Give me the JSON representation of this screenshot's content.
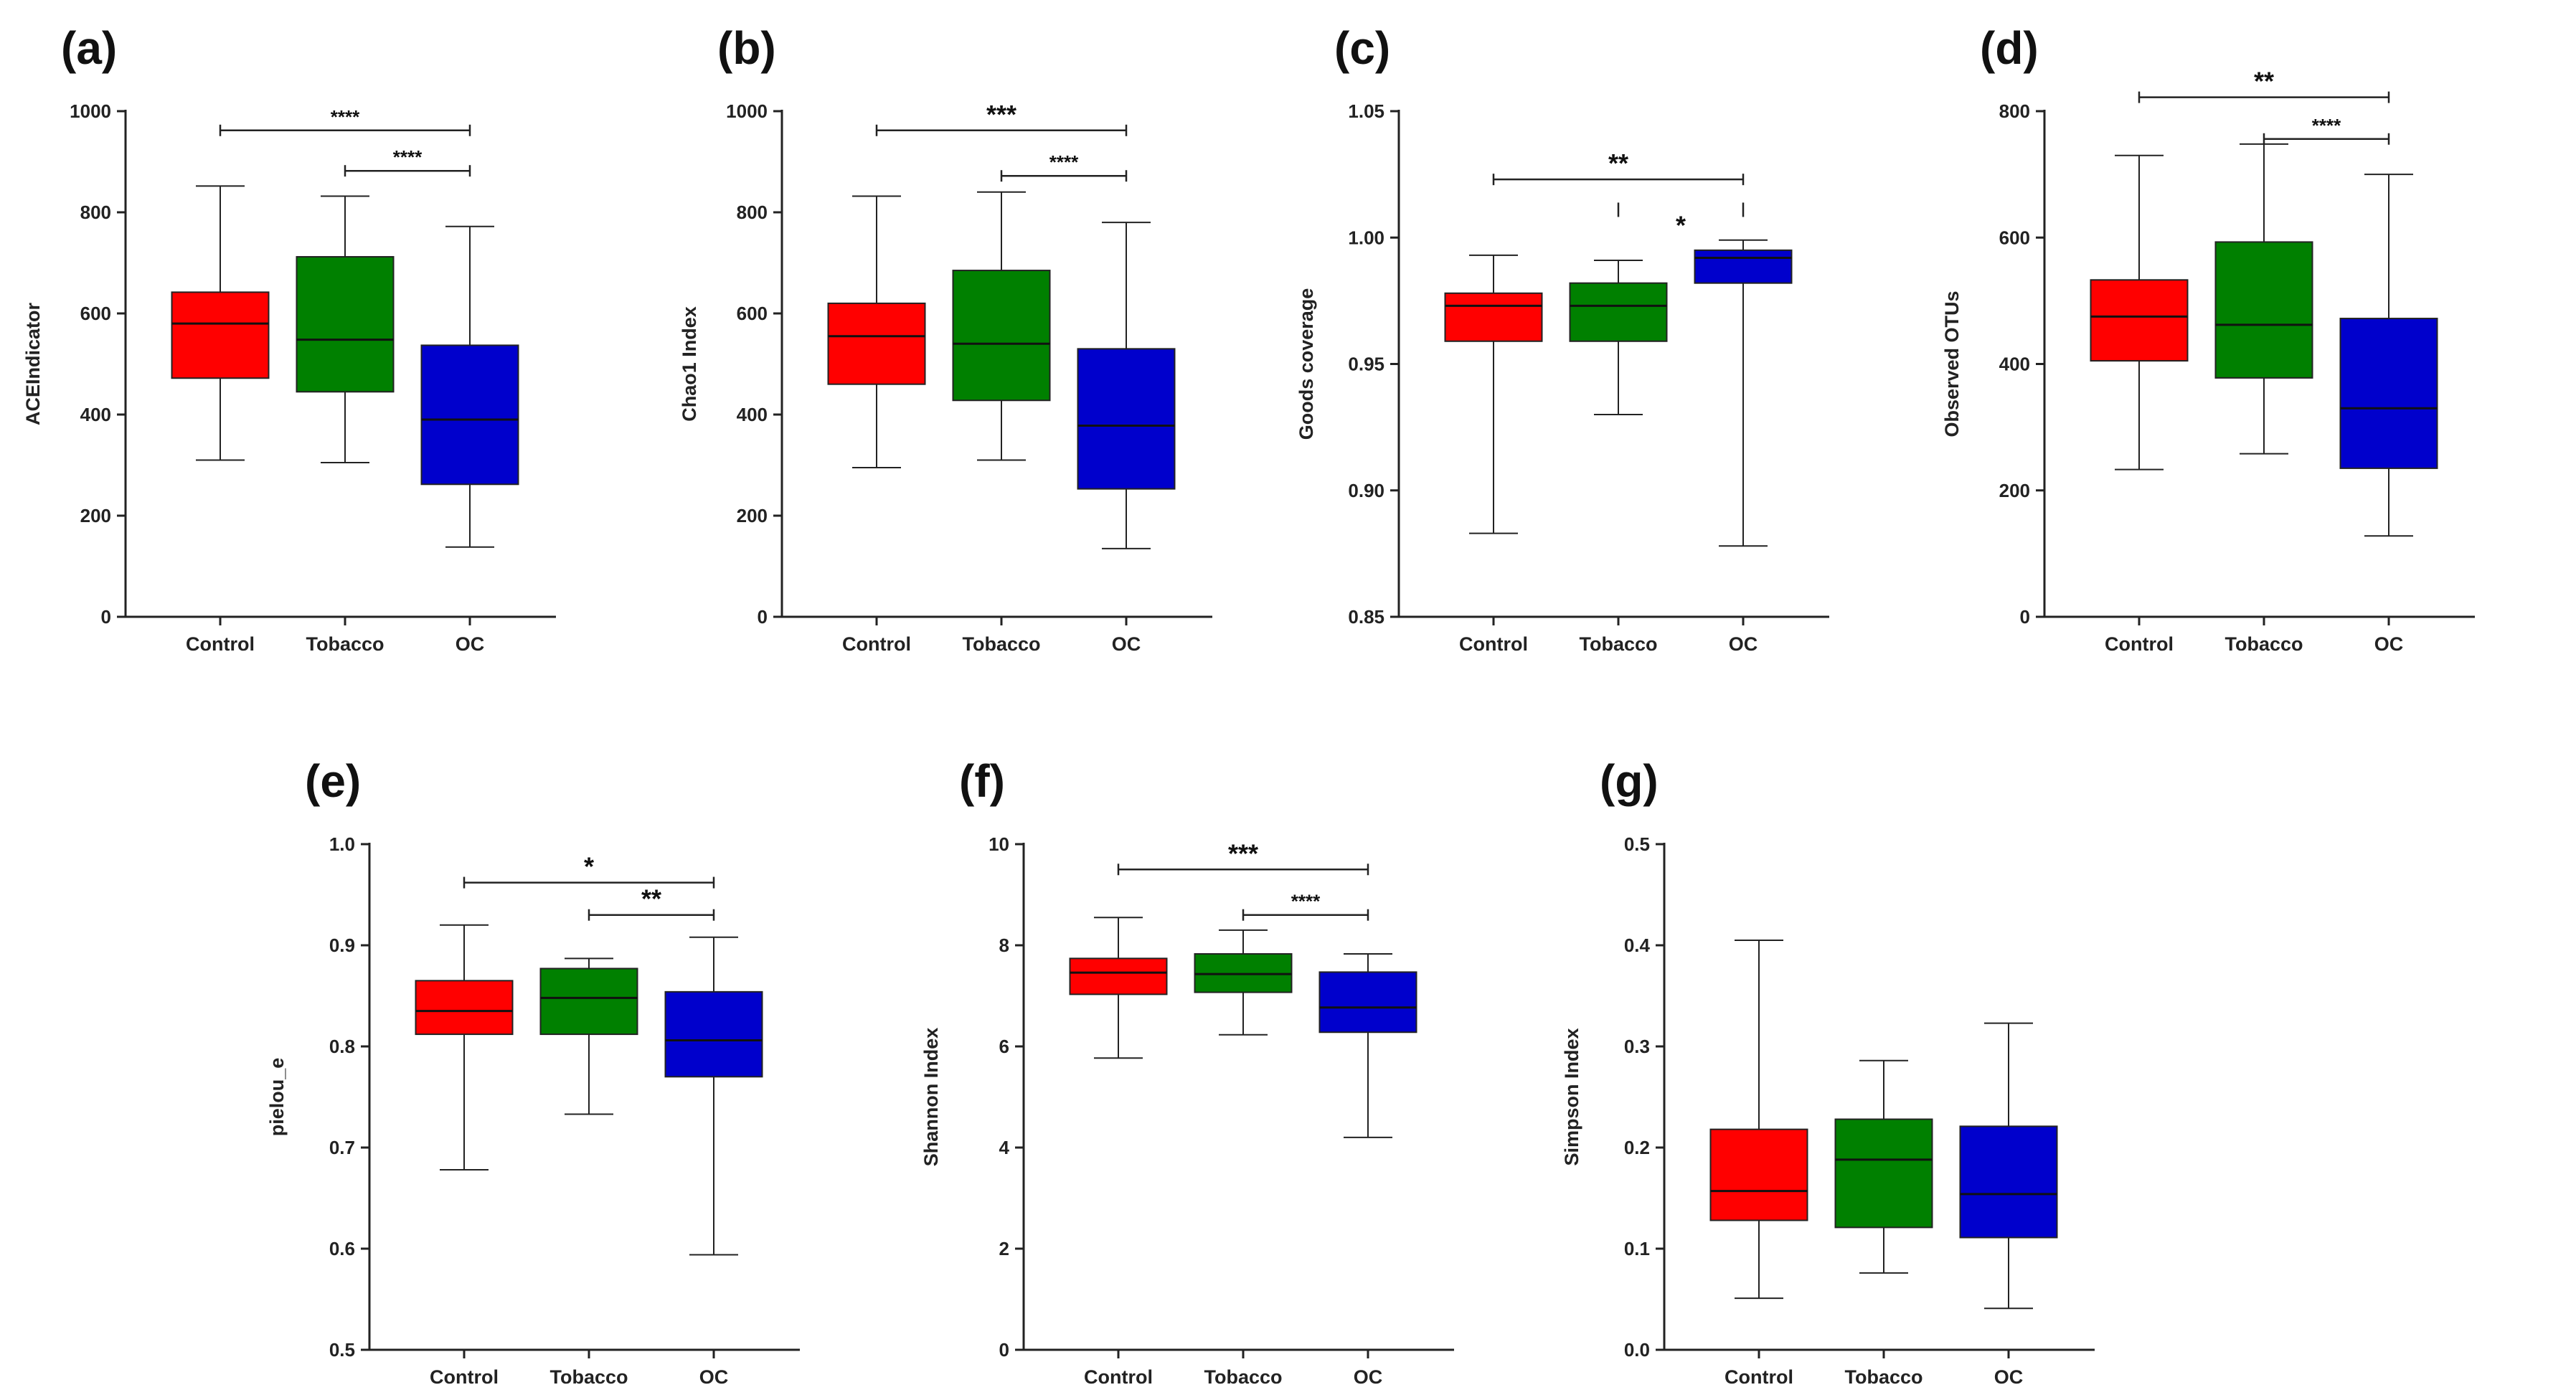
{
  "figure": {
    "background": "#ffffff"
  },
  "group_colors": {
    "Control": "#ff0000",
    "Tobacco": "#008000",
    "OC": "#0000cc"
  },
  "chart_data": [
    {
      "panel": "(a)",
      "type": "box",
      "ylabel": "ACEIndicator",
      "categories": [
        "Control",
        "Tobacco",
        "OC"
      ],
      "ylim": [
        0,
        1000
      ],
      "yticks": [
        0,
        200,
        400,
        600,
        800,
        1000
      ],
      "ytick_labels": [
        "0",
        "200",
        "400",
        "600",
        "800",
        "1000"
      ],
      "boxes": [
        {
          "group": "Control",
          "min": 310,
          "q1": 472,
          "median": 580,
          "q3": 642,
          "max": 852
        },
        {
          "group": "Tobacco",
          "min": 305,
          "q1": 445,
          "median": 548,
          "q3": 712,
          "max": 832
        },
        {
          "group": "OC",
          "min": 138,
          "q1": 262,
          "median": 390,
          "q3": 537,
          "max": 772
        }
      ],
      "significance": [
        {
          "from": 0,
          "to": 2,
          "y": 962,
          "label": "****"
        },
        {
          "from": 1,
          "to": 2,
          "y": 882,
          "label": "****"
        }
      ]
    },
    {
      "panel": "(b)",
      "type": "box",
      "ylabel": "Chao1 Index",
      "categories": [
        "Control",
        "Tobacco",
        "OC"
      ],
      "ylim": [
        0,
        1000
      ],
      "yticks": [
        0,
        200,
        400,
        600,
        800,
        1000
      ],
      "ytick_labels": [
        "0",
        "200",
        "400",
        "600",
        "800",
        "1000"
      ],
      "boxes": [
        {
          "group": "Control",
          "min": 295,
          "q1": 460,
          "median": 555,
          "q3": 620,
          "max": 832
        },
        {
          "group": "Tobacco",
          "min": 310,
          "q1": 428,
          "median": 540,
          "q3": 685,
          "max": 840
        },
        {
          "group": "OC",
          "min": 135,
          "q1": 253,
          "median": 378,
          "q3": 530,
          "max": 780
        }
      ],
      "significance": [
        {
          "from": 0,
          "to": 2,
          "y": 962,
          "label": "***"
        },
        {
          "from": 1,
          "to": 2,
          "y": 872,
          "label": "****"
        }
      ]
    },
    {
      "panel": "(c)",
      "type": "box",
      "ylabel": "Goods coverage",
      "categories": [
        "Control",
        "Tobacco",
        "OC"
      ],
      "ylim": [
        0.85,
        1.05
      ],
      "yticks": [
        0.85,
        0.9,
        0.95,
        1.0,
        1.05
      ],
      "ytick_labels": [
        "0.85",
        "0.90",
        "0.95",
        "1.00",
        "1.05"
      ],
      "boxes": [
        {
          "group": "Control",
          "min": 0.883,
          "q1": 0.959,
          "median": 0.973,
          "q3": 0.978,
          "max": 0.993
        },
        {
          "group": "Tobacco",
          "min": 0.93,
          "q1": 0.959,
          "median": 0.973,
          "q3": 0.982,
          "max": 0.991
        },
        {
          "group": "OC",
          "min": 0.878,
          "q1": 0.982,
          "median": 0.992,
          "q3": 0.995,
          "max": 0.999
        }
      ],
      "significance": [
        {
          "from": 0,
          "to": 2,
          "y": 1.023,
          "label": "**"
        },
        {
          "from": 1,
          "to": 2,
          "y": 1.011,
          "label": "*",
          "open": true
        }
      ]
    },
    {
      "panel": "(d)",
      "type": "box",
      "ylabel": "Observed OTUs",
      "categories": [
        "Control",
        "Tobacco",
        "OC"
      ],
      "ylim": [
        0,
        800
      ],
      "yticks": [
        0,
        200,
        400,
        600,
        800
      ],
      "ytick_labels": [
        "0",
        "200",
        "400",
        "600",
        "800"
      ],
      "boxes": [
        {
          "group": "Control",
          "min": 233,
          "q1": 405,
          "median": 475,
          "q3": 533,
          "max": 730
        },
        {
          "group": "Tobacco",
          "min": 258,
          "q1": 378,
          "median": 462,
          "q3": 593,
          "max": 748
        },
        {
          "group": "OC",
          "min": 128,
          "q1": 235,
          "median": 330,
          "q3": 472,
          "max": 700
        }
      ],
      "significance": [
        {
          "from": 0,
          "to": 2,
          "y": 822,
          "label": "**"
        },
        {
          "from": 1,
          "to": 2,
          "y": 756,
          "label": "****"
        }
      ]
    },
    {
      "panel": "(e)",
      "type": "box",
      "ylabel": "pielou_e",
      "categories": [
        "Control",
        "Tobacco",
        "OC"
      ],
      "ylim": [
        0.5,
        1.0
      ],
      "yticks": [
        0.5,
        0.6,
        0.7,
        0.8,
        0.9,
        1.0
      ],
      "ytick_labels": [
        "0.5",
        "0.6",
        "0.7",
        "0.8",
        "0.9",
        "1.0"
      ],
      "boxes": [
        {
          "group": "Control",
          "min": 0.678,
          "q1": 0.812,
          "median": 0.835,
          "q3": 0.865,
          "max": 0.92
        },
        {
          "group": "Tobacco",
          "min": 0.733,
          "q1": 0.812,
          "median": 0.848,
          "q3": 0.877,
          "max": 0.887
        },
        {
          "group": "OC",
          "min": 0.594,
          "q1": 0.77,
          "median": 0.806,
          "q3": 0.854,
          "max": 0.908
        }
      ],
      "significance": [
        {
          "from": 0,
          "to": 2,
          "y": 0.962,
          "label": "*"
        },
        {
          "from": 1,
          "to": 2,
          "y": 0.93,
          "label": "**"
        }
      ]
    },
    {
      "panel": "(f)",
      "type": "box",
      "ylabel": "Shannon Index",
      "categories": [
        "Control",
        "Tobacco",
        "OC"
      ],
      "ylim": [
        0,
        10
      ],
      "yticks": [
        0,
        2,
        4,
        6,
        8,
        10
      ],
      "ytick_labels": [
        "0",
        "2",
        "4",
        "6",
        "8",
        "10"
      ],
      "boxes": [
        {
          "group": "Control",
          "min": 5.77,
          "q1": 7.03,
          "median": 7.46,
          "q3": 7.74,
          "max": 8.55
        },
        {
          "group": "Tobacco",
          "min": 6.23,
          "q1": 7.07,
          "median": 7.43,
          "q3": 7.83,
          "max": 8.3
        },
        {
          "group": "OC",
          "min": 4.2,
          "q1": 6.28,
          "median": 6.77,
          "q3": 7.47,
          "max": 7.83
        }
      ],
      "significance": [
        {
          "from": 0,
          "to": 2,
          "y": 9.5,
          "label": "***"
        },
        {
          "from": 1,
          "to": 2,
          "y": 8.6,
          "label": "****"
        }
      ]
    },
    {
      "panel": "(g)",
      "type": "box",
      "ylabel": "Simpson Index",
      "categories": [
        "Control",
        "Tobacco",
        "OC"
      ],
      "ylim": [
        0,
        0.5
      ],
      "yticks": [
        0,
        0.1,
        0.2,
        0.3,
        0.4,
        0.5
      ],
      "ytick_labels": [
        "0.0",
        "0.1",
        "0.2",
        "0.3",
        "0.4",
        "0.5"
      ],
      "boxes": [
        {
          "group": "Control",
          "min": 0.051,
          "q1": 0.128,
          "median": 0.157,
          "q3": 0.218,
          "max": 0.405
        },
        {
          "group": "Tobacco",
          "min": 0.076,
          "q1": 0.121,
          "median": 0.188,
          "q3": 0.228,
          "max": 0.286
        },
        {
          "group": "OC",
          "min": 0.041,
          "q1": 0.111,
          "median": 0.154,
          "q3": 0.221,
          "max": 0.323
        }
      ],
      "significance": []
    }
  ]
}
